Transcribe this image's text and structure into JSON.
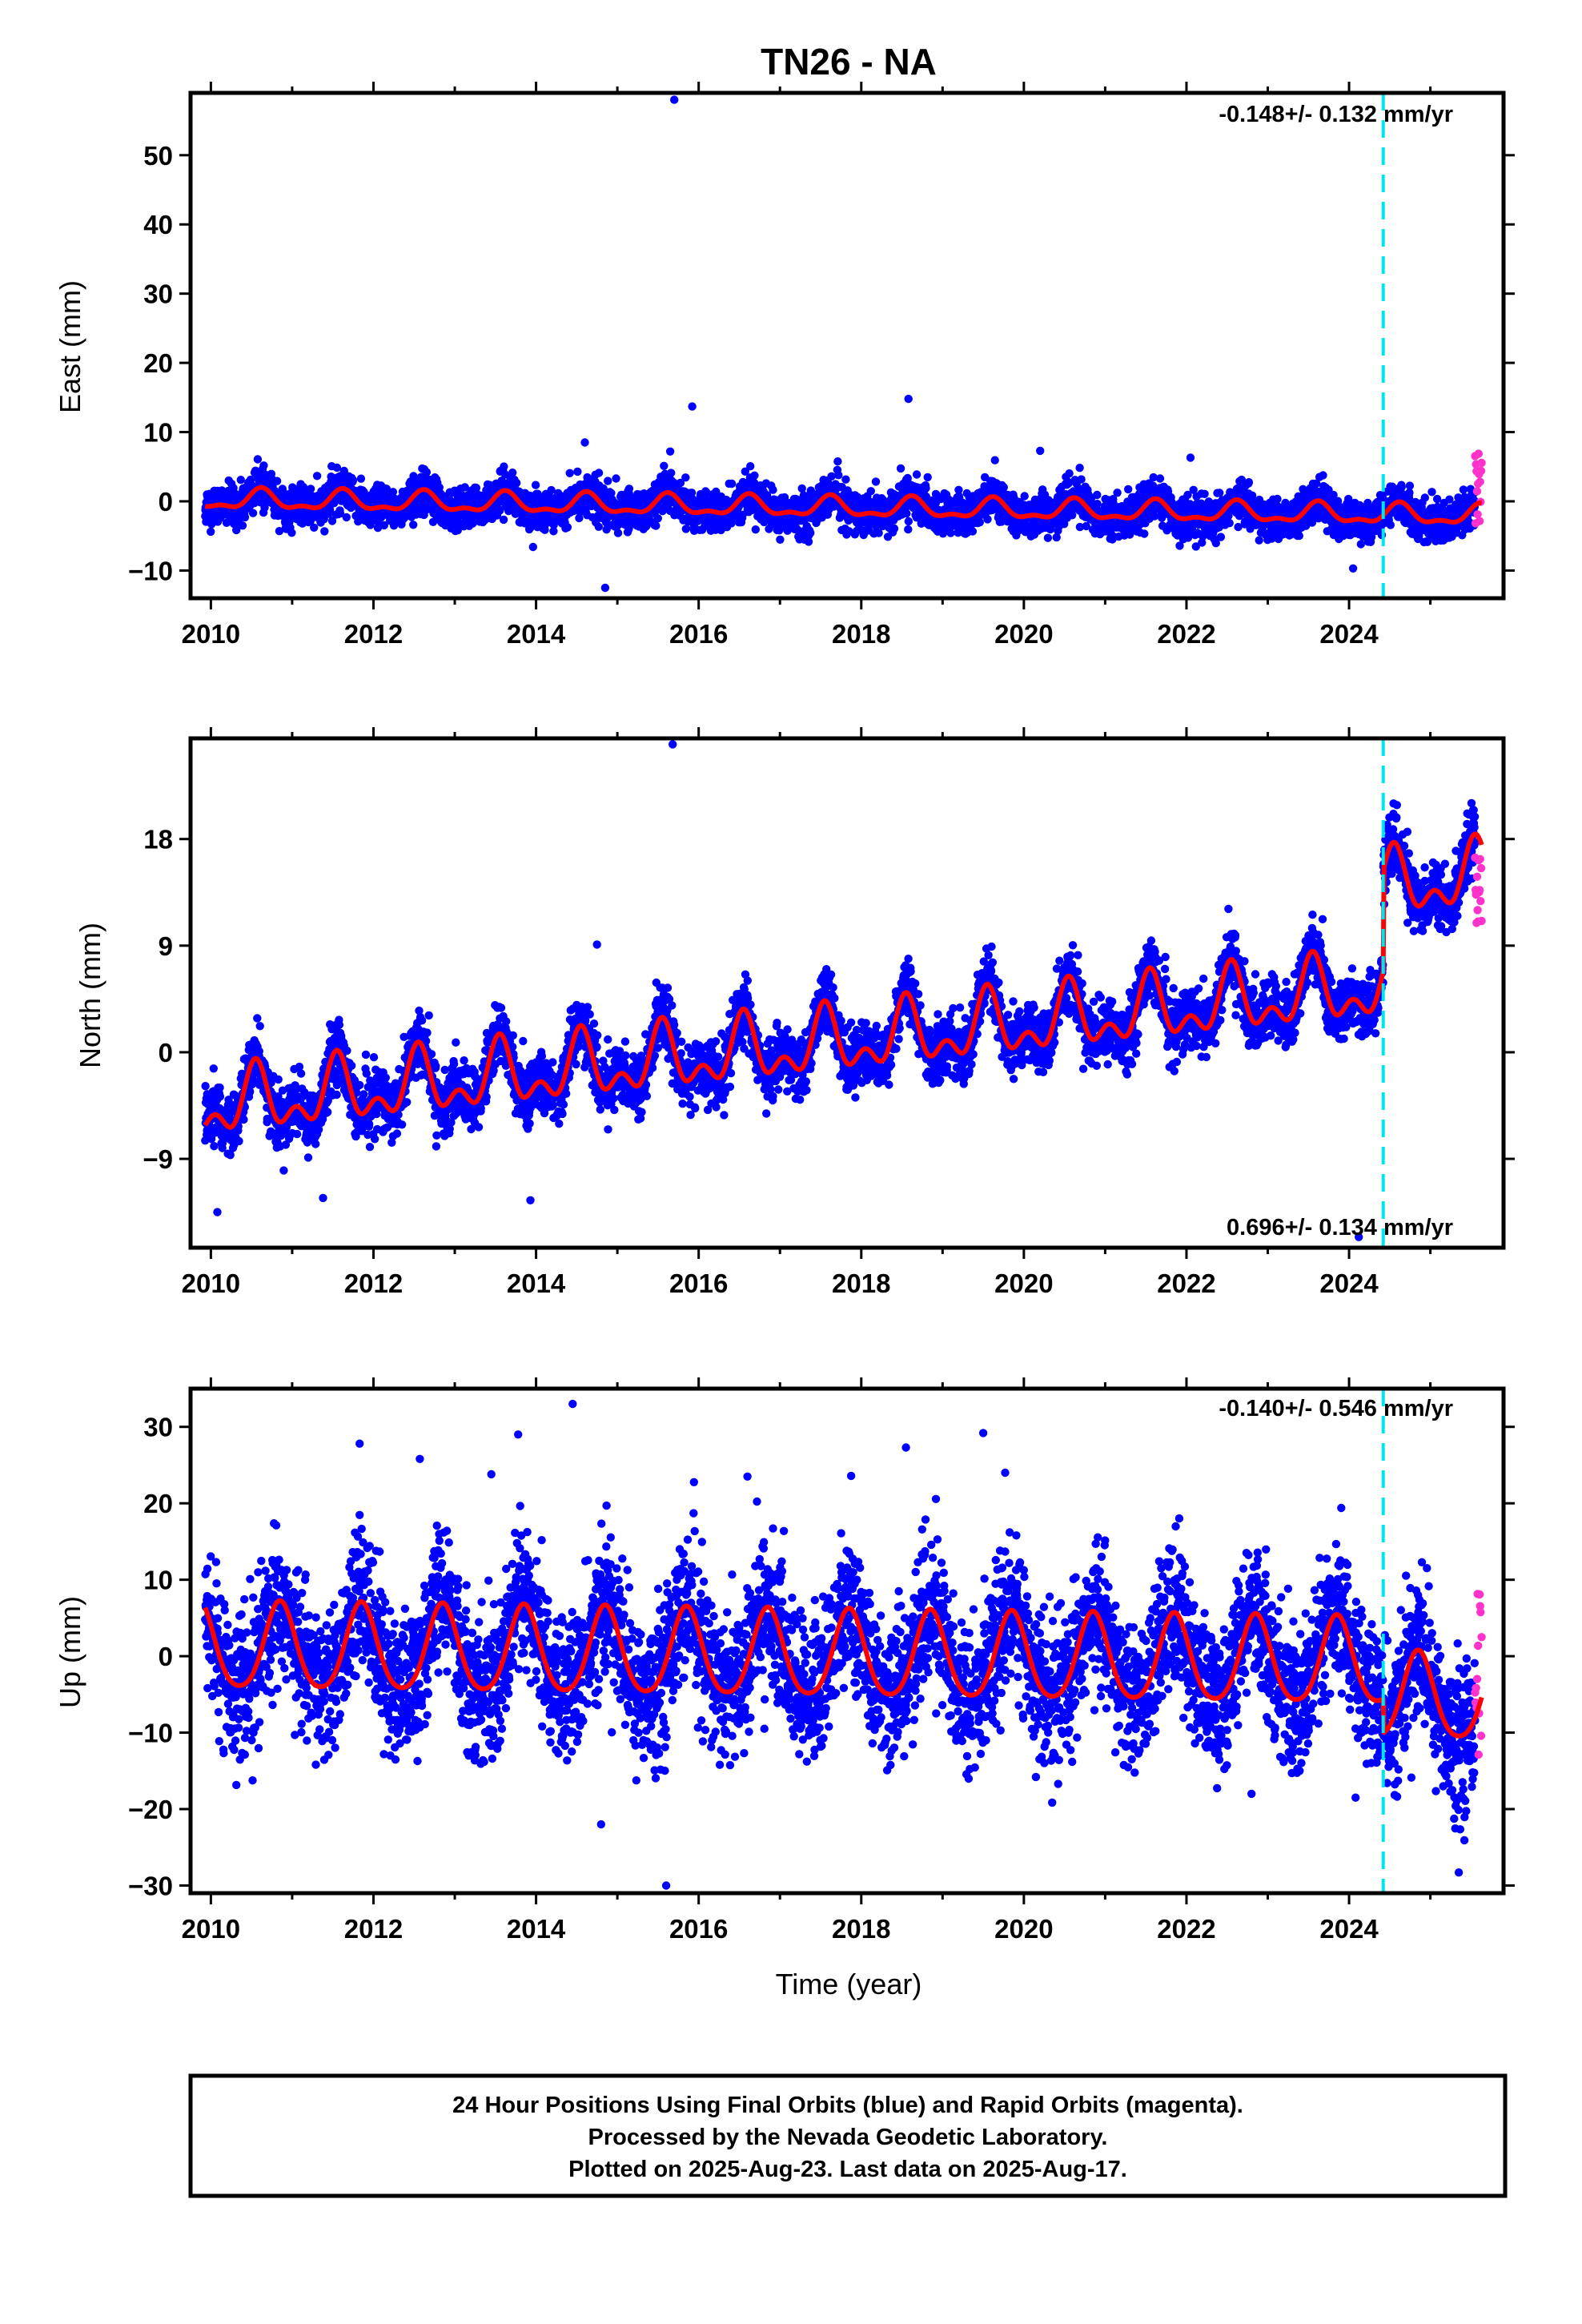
{
  "page": {
    "title": "TN26 - NA",
    "caption": [
      "24 Hour Positions Using Final Orbits (blue) and Rapid Orbits (magenta).",
      "Processed by the Nevada Geodetic Laboratory.",
      "Plotted on 2025-Aug-23. Last data on 2025-Aug-17."
    ]
  },
  "colors": {
    "final": "#0000ff",
    "rapid": "#ff33cc",
    "model": "#ff0000",
    "event": "#00e5ee",
    "frame": "#000000"
  },
  "chart_data": [
    {
      "type": "scatter",
      "panel": "east",
      "title": "TN26 - NA",
      "xlabel": "",
      "ylabel": "East (mm)",
      "xlim": [
        2009.75,
        2025.9
      ],
      "ylim": [
        -14,
        59
      ],
      "xticks": [
        2010,
        2012,
        2014,
        2016,
        2018,
        2020,
        2022,
        2024
      ],
      "yticks": [
        -10,
        0,
        10,
        20,
        30,
        40,
        50
      ],
      "rate_label": "-0.148+/- 0.132 mm/yr",
      "rate_position": "top-right",
      "event_line_x": 2024.42,
      "series": [
        {
          "name": "Final Orbits (blue)",
          "x_range": [
            2009.93,
            2025.55
          ],
          "noise_sd": 1.4
        },
        {
          "name": "Rapid Orbits (magenta)",
          "x_range": [
            2025.55,
            2025.63
          ],
          "y_range": [
            -3.5,
            7.5
          ]
        }
      ],
      "model": {
        "offset": 0.2,
        "rate": -0.148,
        "amp1": 1.3,
        "phase_peak": 0.62,
        "amp2": 0.6,
        "step": {
          "x": 2024.42,
          "size": 0
        }
      },
      "outliers": [
        [
          2015.7,
          58.0
        ],
        [
          2015.92,
          13.7
        ],
        [
          2018.58,
          14.8
        ],
        [
          2020.2,
          7.3
        ],
        [
          2014.85,
          -12.5
        ],
        [
          2014.6,
          8.5
        ],
        [
          2024.05,
          -9.7
        ],
        [
          2022.05,
          6.3
        ],
        [
          2015.65,
          7.2
        ]
      ]
    },
    {
      "type": "scatter",
      "panel": "north",
      "xlabel": "",
      "ylabel": "North (mm)",
      "xlim": [
        2009.75,
        2025.9
      ],
      "ylim": [
        -16.5,
        26.5
      ],
      "xticks": [
        2010,
        2012,
        2014,
        2016,
        2018,
        2020,
        2022,
        2024
      ],
      "yticks": [
        -9,
        0,
        9,
        18
      ],
      "rate_label": "0.696+/- 0.134 mm/yr",
      "rate_position": "bottom-right",
      "event_line_x": 2024.42,
      "series": [
        {
          "name": "Final Orbits (blue)",
          "x_range": [
            2009.93,
            2025.55
          ],
          "noise_sd": 1.25
        },
        {
          "name": "Rapid Orbits (magenta)",
          "x_range": [
            2025.55,
            2025.63
          ],
          "y_range": [
            10.5,
            16.5
          ]
        }
      ],
      "model": {
        "offset": -4.6,
        "rate": 0.696,
        "amp1": 2.2,
        "phase_peak": 0.55,
        "amp2": 1.5,
        "step": {
          "x": 2024.42,
          "size": 8.5
        }
      },
      "outliers": [
        [
          2015.68,
          26.0
        ],
        [
          2024.12,
          -15.6
        ],
        [
          2013.93,
          -12.5
        ],
        [
          2010.08,
          -13.5
        ],
        [
          2011.38,
          -12.3
        ],
        [
          2014.75,
          9.1
        ],
        [
          2024.48,
          18.8
        ]
      ]
    },
    {
      "type": "scatter",
      "panel": "up",
      "xlabel": "Time (year)",
      "ylabel": "Up (mm)",
      "xlim": [
        2009.75,
        2025.9
      ],
      "ylim": [
        -31,
        35
      ],
      "xticks": [
        2010,
        2012,
        2014,
        2016,
        2018,
        2020,
        2022,
        2024
      ],
      "yticks": [
        -30,
        -20,
        -10,
        0,
        10,
        20,
        30
      ],
      "rate_label": "-0.140+/- 0.546 mm/yr",
      "rate_position": "top-right",
      "event_line_x": 2024.42,
      "series": [
        {
          "name": "Final Orbits (blue)",
          "x_range": [
            2009.93,
            2025.55
          ],
          "noise_sd": 4.6
        },
        {
          "name": "Rapid Orbits (magenta)",
          "x_range": [
            2025.55,
            2025.63
          ],
          "y_range": [
            -18,
            10
          ]
        }
      ],
      "model": {
        "offset": 1.0,
        "rate": -0.14,
        "amp1": 5.6,
        "phase_peak": 0.85,
        "amp2": 0.8,
        "step": {
          "x": 2024.42,
          "size": -4.5
        }
      },
      "outliers": [
        [
          2014.45,
          33.0
        ],
        [
          2013.78,
          29.0
        ],
        [
          2019.5,
          29.2
        ],
        [
          2019.77,
          24.0
        ],
        [
          2018.55,
          27.3
        ],
        [
          2015.6,
          -30.0
        ],
        [
          2014.8,
          -22.0
        ],
        [
          2025.35,
          -28.3
        ],
        [
          2011.83,
          27.8
        ],
        [
          2012.57,
          25.8
        ],
        [
          2013.45,
          23.8
        ],
        [
          2016.6,
          23.5
        ],
        [
          2022.8,
          -18.0
        ],
        [
          2024.08,
          -18.5
        ]
      ]
    }
  ]
}
